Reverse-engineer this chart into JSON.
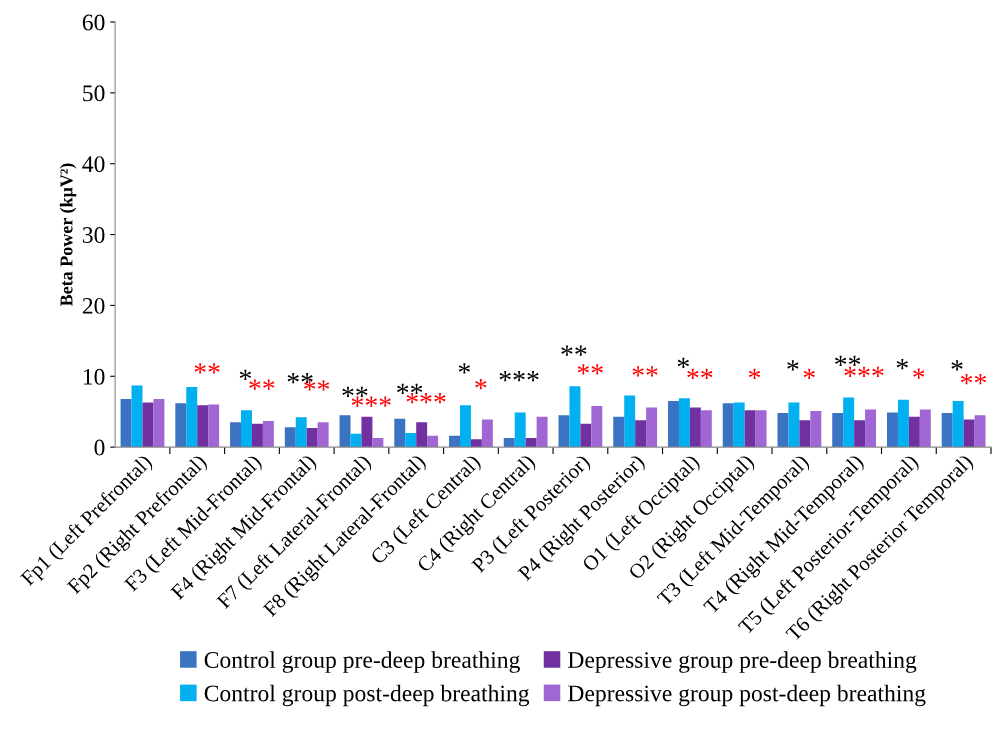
{
  "chart_data": {
    "type": "bar",
    "ylabel": "Beta Power (kμV²)",
    "categories": [
      "Fp1 (Left Prefrontal)",
      "Fp2 (Right Prefrontal)",
      "F3 (Left Mid-Frontal)",
      "F4 (Right Mid-Frontal)",
      "F7 (Left Lateral-Frontal)",
      "F8 (Right Lateral-Frontal)",
      "C3 (Left Central)",
      "C4 (Right Central)",
      "P3 (Left Posterior)",
      "P4 (Right Posterior)",
      "O1 (Left Occiptal)",
      "O2 (Right Occiptal)",
      "T3 (Left Mid-Temporal)",
      "T4 (Right Mid-Temporal)",
      "T5 (Left Posterior-Temporal)",
      "T6 (Right Posterior Temporal)"
    ],
    "series": [
      {
        "name": "Control group pre-deep breathing",
        "color": "#3a73c2",
        "values": [
          6.8,
          6.2,
          3.5,
          2.8,
          4.5,
          4.0,
          1.6,
          1.3,
          4.5,
          4.3,
          6.5,
          6.2,
          4.8,
          4.8,
          4.9,
          4.8
        ]
      },
      {
        "name": "Control group post-deep breathing",
        "color": "#00b0f0",
        "values": [
          8.7,
          8.5,
          5.2,
          4.2,
          1.9,
          2.0,
          5.9,
          4.9,
          8.6,
          7.3,
          6.9,
          6.3,
          6.3,
          7.0,
          6.7,
          6.5
        ]
      },
      {
        "name": "Depressive group pre-deep breathing",
        "color": "#7030a0",
        "values": [
          6.3,
          5.9,
          3.3,
          2.7,
          4.3,
          3.5,
          1.1,
          1.3,
          3.3,
          3.8,
          5.6,
          5.2,
          3.8,
          3.8,
          4.3,
          3.9
        ]
      },
      {
        "name": "Depressive group post-deep breathing",
        "color": "#a066d3",
        "values": [
          6.8,
          6.0,
          3.7,
          3.5,
          1.3,
          1.6,
          3.9,
          4.3,
          5.8,
          5.6,
          5.2,
          5.2,
          5.1,
          5.3,
          5.3,
          4.5
        ]
      }
    ],
    "ylim": [
      0,
      60
    ],
    "yticks": [
      0,
      10,
      20,
      30,
      40,
      50,
      60
    ],
    "grid": false,
    "legend": "bottom",
    "annotations": [
      "**",
      "*",
      "**",
      "**",
      "**",
      "**",
      "***",
      "**",
      "***",
      "*",
      "*",
      "***",
      "**",
      "**",
      "**",
      "*",
      "**",
      "*",
      "*",
      "*",
      "**",
      "***",
      "*",
      "*",
      "*",
      "**"
    ]
  }
}
